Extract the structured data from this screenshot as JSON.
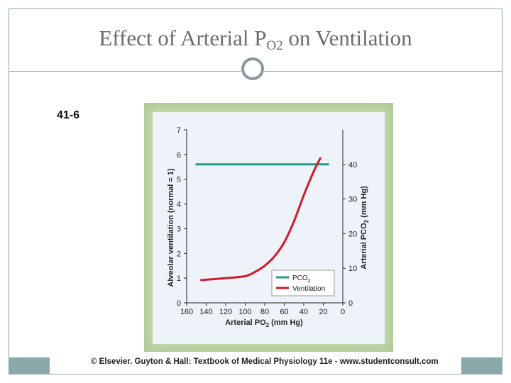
{
  "slide": {
    "title_main": "Effect of Arterial P",
    "title_sub": "O2",
    "title_end": " on Ventilation",
    "figure_label": "41-6",
    "copyright": "© Elsevier. Guyton & Hall: Textbook of Medical Physiology 11e - www.studentconsult.com"
  },
  "chart_data": {
    "type": "line",
    "title": "",
    "xlabel_main": "Arterial PO",
    "xlabel_sub": "2",
    "xlabel_end": " (mm Hg)",
    "ylabel": "Alveolar ventilation (normal = 1)",
    "y2label_main": "Arterial PCO",
    "y2label_sub": "2",
    "y2label_end": " (mm Hg)",
    "xlim": [
      160,
      0
    ],
    "ylim": [
      0,
      7
    ],
    "y2lim": [
      0,
      50
    ],
    "x_ticks": [
      160,
      140,
      120,
      100,
      80,
      60,
      40,
      20,
      0
    ],
    "y_ticks": [
      0,
      1,
      2,
      3,
      4,
      5,
      6,
      7
    ],
    "y2_ticks": [
      0,
      10,
      20,
      30,
      40
    ],
    "legend_position": "bottom-right",
    "series": [
      {
        "name": "PCO",
        "name_sub": "2",
        "axis": "right",
        "color": "#1f9e8a",
        "x": [
          150,
          15
        ],
        "y": [
          40,
          40
        ]
      },
      {
        "name": "Ventilation",
        "name_sub": "",
        "axis": "left",
        "color": "#d11a2a",
        "x": [
          145,
          120,
          100,
          90,
          80,
          70,
          60,
          50,
          40,
          30,
          23
        ],
        "y": [
          0.92,
          1.0,
          1.08,
          1.25,
          1.5,
          1.88,
          2.45,
          3.3,
          4.35,
          5.3,
          5.85
        ]
      }
    ]
  }
}
